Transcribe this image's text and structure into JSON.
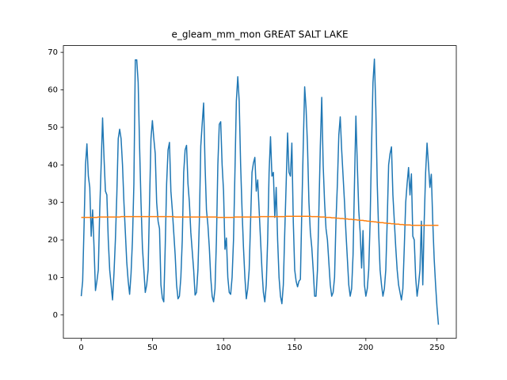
{
  "chart_data": {
    "type": "line",
    "title": "e_gleam_mm_mon GREAT SALT LAKE",
    "x": [
      0,
      1,
      2,
      3,
      4,
      5,
      6,
      7,
      8,
      9,
      10,
      11,
      12,
      13,
      14,
      15,
      16,
      17,
      18,
      19,
      20,
      21,
      22,
      23,
      24,
      25,
      26,
      27,
      28,
      29,
      30,
      31,
      32,
      33,
      34,
      35,
      36,
      37,
      38,
      39,
      40,
      41,
      42,
      43,
      44,
      45,
      46,
      47,
      48,
      49,
      50,
      51,
      52,
      53,
      54,
      55,
      56,
      57,
      58,
      59,
      60,
      61,
      62,
      63,
      64,
      65,
      66,
      67,
      68,
      69,
      70,
      71,
      72,
      73,
      74,
      75,
      76,
      77,
      78,
      79,
      80,
      81,
      82,
      83,
      84,
      85,
      86,
      87,
      88,
      89,
      90,
      91,
      92,
      93,
      94,
      95,
      96,
      97,
      98,
      99,
      100,
      101,
      102,
      103,
      104,
      105,
      106,
      107,
      108,
      109,
      110,
      111,
      112,
      113,
      114,
      115,
      116,
      117,
      118,
      119,
      120,
      121,
      122,
      123,
      124,
      125,
      126,
      127,
      128,
      129,
      130,
      131,
      132,
      133,
      134,
      135,
      136,
      137,
      138,
      139,
      140,
      141,
      142,
      143,
      144,
      145,
      146,
      147,
      148,
      149,
      150,
      151,
      152,
      153,
      154,
      155,
      156,
      157,
      158,
      159,
      160,
      161,
      162,
      163,
      164,
      165,
      166,
      167,
      168,
      169,
      170,
      171,
      172,
      173,
      174,
      175,
      176,
      177,
      178,
      179,
      180,
      181,
      182,
      183,
      184,
      185,
      186,
      187,
      188,
      189,
      190,
      191,
      192,
      193,
      194,
      195,
      196,
      197,
      198,
      199,
      200,
      201,
      202,
      203,
      204,
      205,
      206,
      207,
      208,
      209,
      210,
      211,
      212,
      213,
      214,
      215,
      216,
      217,
      218,
      219,
      220,
      221,
      222,
      223,
      224,
      225,
      226,
      227,
      228,
      229,
      230,
      231,
      232,
      233,
      234,
      235,
      236,
      237,
      238,
      239,
      240,
      241,
      242,
      243,
      244,
      245,
      246,
      247,
      248,
      249,
      250,
      251
    ],
    "series": [
      {
        "color": "#1f77b4",
        "values": [
          5,
          9,
          24,
          40,
          45.6,
          37,
          34,
          21,
          28,
          18,
          6.5,
          9,
          12,
          28,
          40,
          52.5,
          42,
          33,
          32,
          20,
          12,
          8,
          4,
          11,
          20,
          32,
          47,
          49.5,
          47,
          40,
          30,
          22,
          14,
          9,
          5.5,
          11,
          20,
          35,
          68,
          68,
          62,
          45,
          30,
          18,
          12,
          6,
          8,
          12,
          30,
          47,
          51.8,
          47,
          43,
          30,
          25,
          23,
          8,
          4.5,
          3.5,
          18,
          35,
          44,
          46,
          33,
          28,
          22,
          16,
          8,
          4.3,
          5,
          10,
          20,
          38,
          44,
          45.2,
          35,
          30,
          22,
          17,
          12,
          5.3,
          6,
          12,
          25,
          45,
          51,
          56.5,
          40,
          28,
          24,
          18,
          10,
          5,
          3.5,
          7,
          20,
          40,
          50.8,
          51.5,
          40,
          33,
          17.5,
          20.5,
          10,
          6,
          5.5,
          10,
          20,
          38,
          57,
          63.5,
          57,
          40,
          28,
          18,
          10,
          4.3,
          7,
          12,
          25,
          38,
          40.5,
          42,
          33,
          36,
          28,
          20,
          12,
          6,
          3.5,
          8,
          20,
          38,
          47.5,
          37,
          38,
          26,
          34,
          20,
          10,
          5,
          3,
          8,
          22,
          35,
          48.5,
          38,
          37,
          45.8,
          25,
          12,
          9,
          7.5,
          9,
          9.5,
          28,
          45,
          60.8,
          55,
          45,
          30,
          22,
          18,
          12,
          5,
          5,
          12,
          28,
          45,
          58,
          40,
          30,
          23,
          20,
          14,
          8,
          5,
          6,
          10,
          25,
          35,
          48,
          52.8,
          44,
          37,
          30,
          22,
          15,
          8,
          5,
          7,
          16,
          35,
          53,
          40,
          28,
          22,
          12.5,
          22.5,
          8,
          5,
          7,
          12,
          25,
          45,
          62,
          68.2,
          55,
          35,
          22,
          12,
          8,
          5,
          7,
          12,
          25,
          40,
          43,
          44.8,
          32,
          25,
          18,
          12,
          8,
          6,
          4,
          7,
          18,
          30,
          35,
          39.3,
          32,
          37.6,
          21,
          20,
          10,
          5,
          8,
          12,
          25,
          8,
          25,
          38,
          45.8,
          40,
          34,
          37.5,
          25,
          15,
          8,
          2,
          -2.6
        ]
      },
      {
        "color": "#ff7f0e",
        "values": [
          26.0,
          26.0,
          26.0,
          26.0,
          26.0,
          26.0,
          26.0,
          26.0,
          26.0,
          26.0,
          26.0,
          26.0,
          26.1,
          26.1,
          26.1,
          26.1,
          26.1,
          26.1,
          26.1,
          26.1,
          26.1,
          26.1,
          26.1,
          26.1,
          26.1,
          26.1,
          26.1,
          26.1,
          26.2,
          26.2,
          26.2,
          26.2,
          26.2,
          26.2,
          26.2,
          26.2,
          26.2,
          26.2,
          26.2,
          26.2,
          26.2,
          26.2,
          26.2,
          26.2,
          26.2,
          26.2,
          26.2,
          26.2,
          26.2,
          26.2,
          26.2,
          26.2,
          26.2,
          26.2,
          26.2,
          26.2,
          26.2,
          26.2,
          26.2,
          26.2,
          26.2,
          26.2,
          26.2,
          26.2,
          26.2,
          26.2,
          26.1,
          26.1,
          26.1,
          26.1,
          26.1,
          26.1,
          26.1,
          26.1,
          26.1,
          26.1,
          26.1,
          26.1,
          26.1,
          26.1,
          26.1,
          26.1,
          26.1,
          26.1,
          26.1,
          26.1,
          26.1,
          26.1,
          26.1,
          26.1,
          26.1,
          26.1,
          26.1,
          26.1,
          26.1,
          26.1,
          26.0,
          26.0,
          26.0,
          26.0,
          26.0,
          26.0,
          26.0,
          26.0,
          26.0,
          26.0,
          26.0,
          26.0,
          26.1,
          26.1,
          26.1,
          26.1,
          26.1,
          26.1,
          26.1,
          26.1,
          26.1,
          26.1,
          26.1,
          26.1,
          26.1,
          26.1,
          26.1,
          26.1,
          26.1,
          26.1,
          26.2,
          26.2,
          26.2,
          26.2,
          26.2,
          26.2,
          26.2,
          26.2,
          26.2,
          26.2,
          26.2,
          26.2,
          26.2,
          26.2,
          26.2,
          26.2,
          26.2,
          26.2,
          26.3,
          26.3,
          26.3,
          26.3,
          26.3,
          26.3,
          26.3,
          26.3,
          26.3,
          26.3,
          26.3,
          26.3,
          26.3,
          26.3,
          26.3,
          26.3,
          26.3,
          26.3,
          26.2,
          26.2,
          26.2,
          26.2,
          26.2,
          26.2,
          26.1,
          26.1,
          26.1,
          26.1,
          26.0,
          26.0,
          26.0,
          26.0,
          25.9,
          25.9,
          25.9,
          25.8,
          25.8,
          25.8,
          25.7,
          25.7,
          25.7,
          25.6,
          25.6,
          25.6,
          25.5,
          25.5,
          25.5,
          25.4,
          25.4,
          25.4,
          25.3,
          25.3,
          25.2,
          25.2,
          25.2,
          25.1,
          25.1,
          25.0,
          25.0,
          24.9,
          24.9,
          24.9,
          24.8,
          24.8,
          24.7,
          24.7,
          24.6,
          24.6,
          24.6,
          24.5,
          24.5,
          24.4,
          24.4,
          24.4,
          24.3,
          24.3,
          24.3,
          24.2,
          24.2,
          24.2,
          24.1,
          24.1,
          24.1,
          24.0,
          24.0,
          24.0,
          24.0,
          24.0,
          23.9,
          23.9,
          23.9,
          23.9,
          23.9,
          23.9,
          23.9,
          23.9,
          23.9,
          23.9,
          23.9,
          23.9,
          23.9,
          23.9,
          23.9,
          23.9,
          23.9,
          23.9,
          23.9,
          23.9
        ]
      }
    ],
    "xlim": [
      -12.55,
      263.55
    ],
    "xticks": [
      0,
      50,
      100,
      150,
      200,
      250
    ],
    "ylim": [
      -6.2,
      71.8
    ],
    "yticks": [
      0,
      10,
      20,
      30,
      40,
      50,
      60,
      70
    ]
  }
}
